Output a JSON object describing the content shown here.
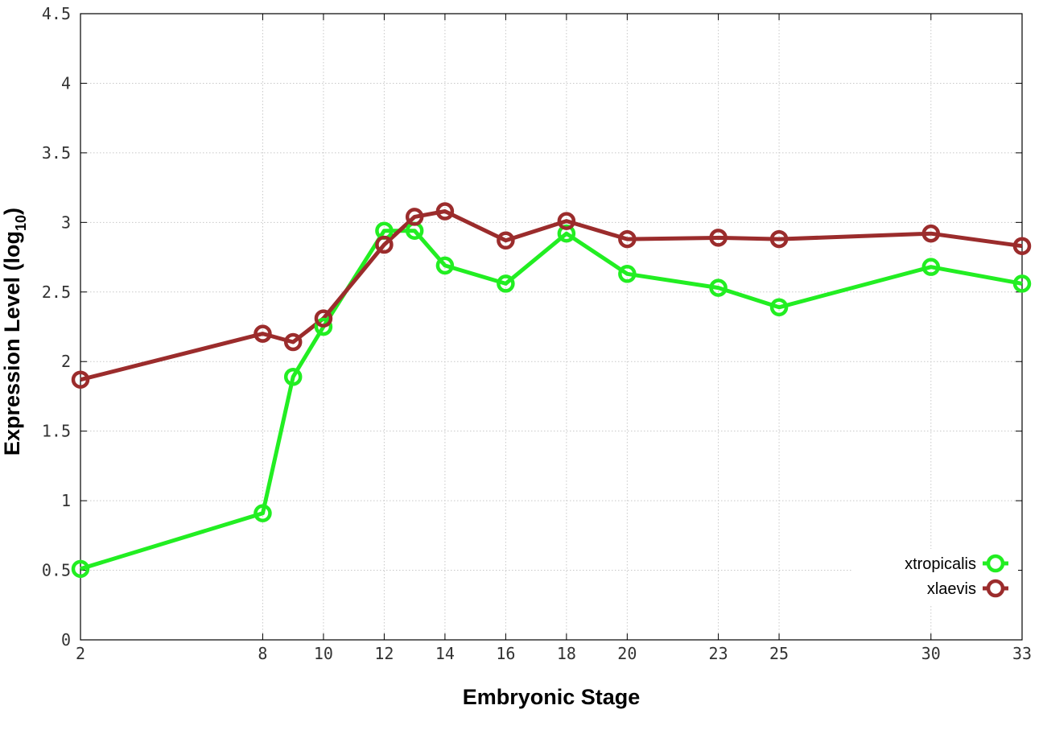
{
  "chart_data": {
    "type": "line",
    "xlabel": "Embryonic Stage",
    "ylabel": "Expression Level (log10)",
    "ylabel_main": "Expression Level (log",
    "ylabel_sub": "10",
    "ylabel_close": ")",
    "xlim": [
      2,
      33
    ],
    "ylim": [
      0,
      4.5
    ],
    "x": [
      2,
      8,
      9,
      10,
      12,
      13,
      14,
      16,
      18,
      20,
      23,
      25,
      30,
      33
    ],
    "x_ticks": [
      2,
      8,
      10,
      12,
      14,
      16,
      18,
      20,
      23,
      25,
      30,
      33
    ],
    "y_ticks": [
      "0",
      "0.5",
      "1",
      "1.5",
      "2",
      "2.5",
      "3",
      "3.5",
      "4",
      "4.5"
    ],
    "grid": true,
    "legend_position": "bottom-right",
    "series": [
      {
        "name": "xtropicalis",
        "color": "#22ee22",
        "values": [
          0.51,
          0.91,
          1.89,
          2.25,
          2.94,
          2.94,
          2.69,
          2.56,
          2.92,
          2.63,
          2.53,
          2.39,
          2.68,
          2.56
        ]
      },
      {
        "name": "xlaevis",
        "color": "#9b2c2c",
        "values": [
          1.87,
          2.2,
          2.14,
          2.31,
          2.84,
          3.04,
          3.08,
          2.87,
          3.01,
          2.88,
          2.89,
          2.88,
          2.92,
          2.83
        ]
      }
    ]
  }
}
